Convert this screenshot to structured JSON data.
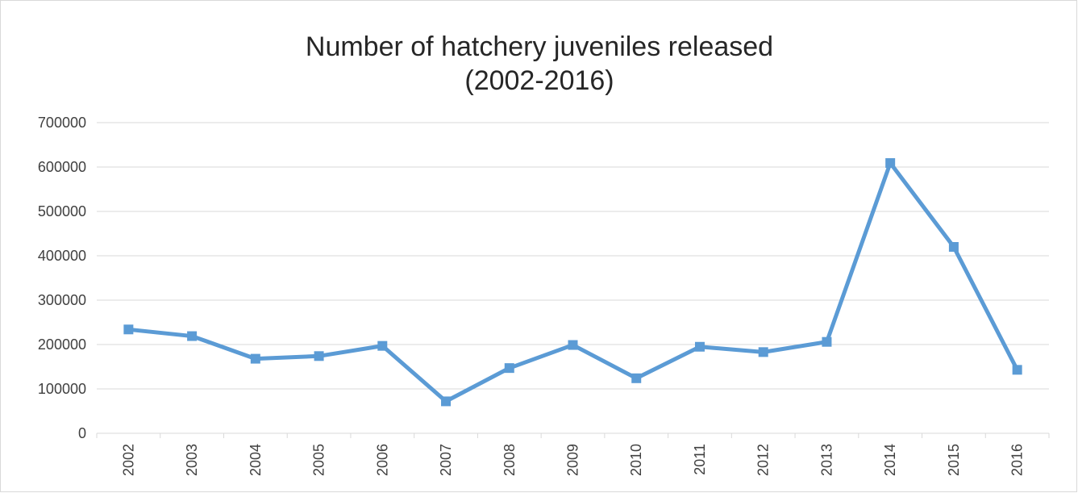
{
  "chart_data": {
    "type": "line",
    "title_lines": [
      "Number of hatchery juveniles released",
      "(2002-2016)"
    ],
    "xlabel": "",
    "ylabel": "",
    "categories": [
      "2002",
      "2003",
      "2004",
      "2005",
      "2006",
      "2007",
      "2008",
      "2009",
      "2010",
      "2011",
      "2012",
      "2013",
      "2014",
      "2015",
      "2016"
    ],
    "series": [
      {
        "values": [
          234000,
          219000,
          168000,
          174000,
          197000,
          72000,
          147000,
          199000,
          124000,
          195000,
          183000,
          206000,
          609000,
          420000,
          143000
        ],
        "color": "#5b9bd5",
        "marker": "square"
      }
    ],
    "ylim": [
      0,
      700000
    ],
    "yticks": [
      "0",
      "100000",
      "200000",
      "300000",
      "400000",
      "500000",
      "600000",
      "700000"
    ],
    "grid": "horizontal",
    "legend": "none"
  }
}
